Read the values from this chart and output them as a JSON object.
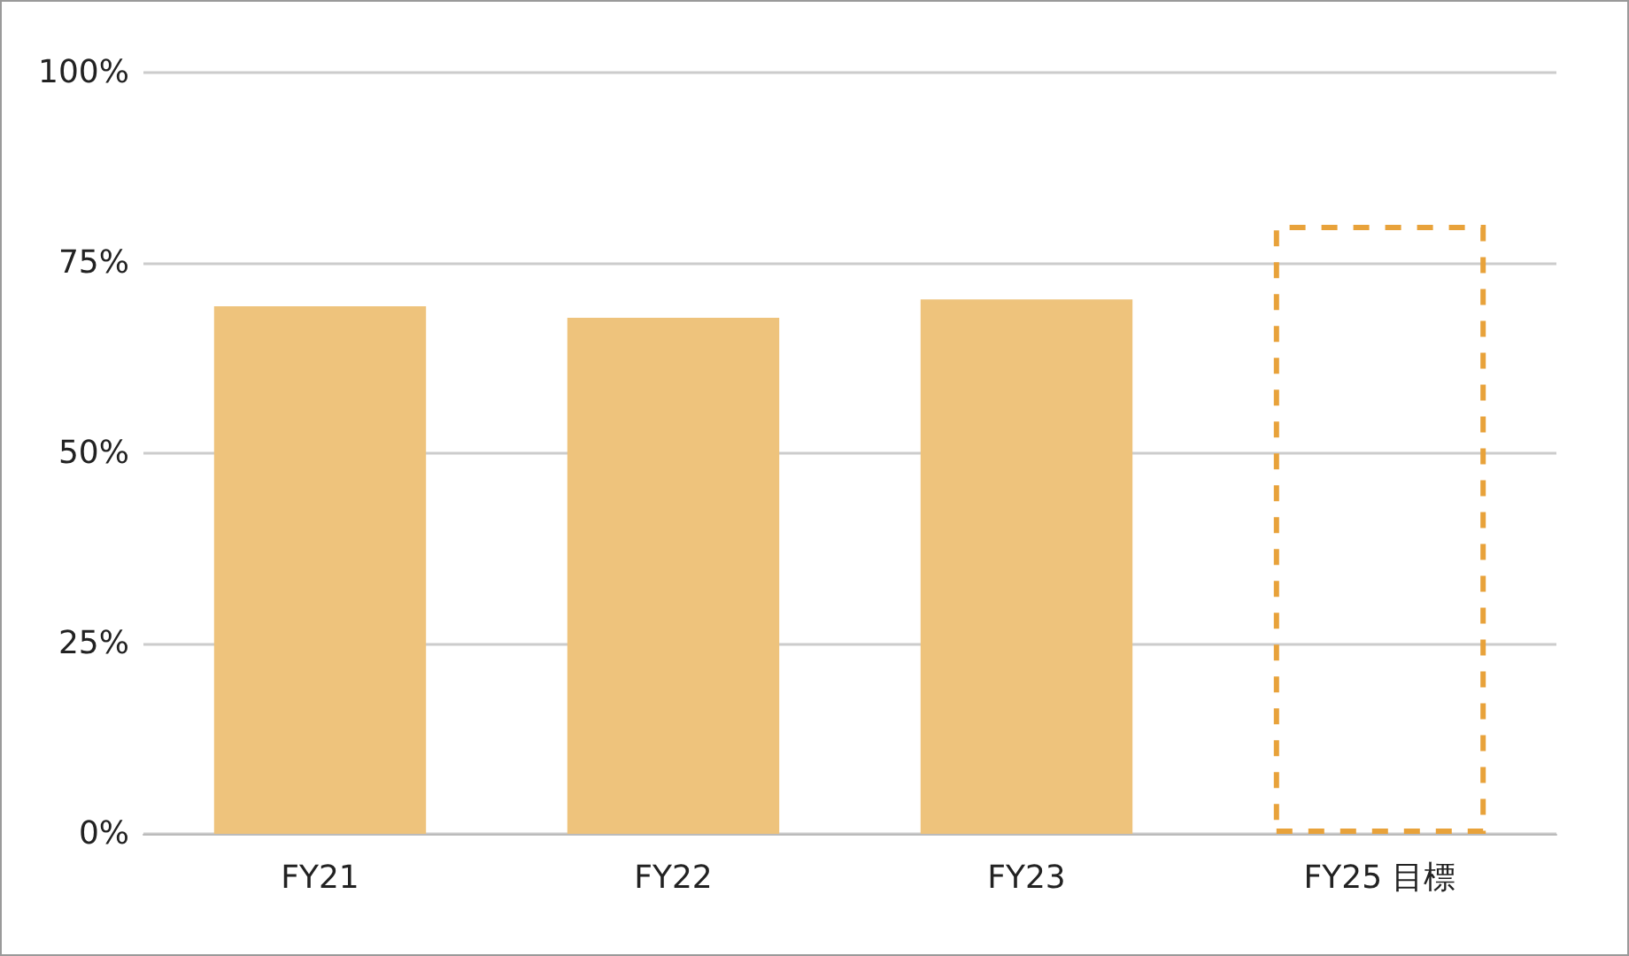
{
  "chart_data": {
    "type": "bar",
    "categories": [
      "FY21",
      "FY22",
      "FY23",
      "FY25 目標"
    ],
    "series": [
      {
        "color": "#eec37c",
        "values": [
          69.3,
          67.8,
          70.2,
          null
        ]
      },
      {
        "color": "#e8a23a",
        "values": [
          null,
          null,
          null,
          80
        ],
        "line_style": "dashed"
      }
    ],
    "ylim": [
      0,
      100
    ],
    "yticks": [
      {
        "value": 0,
        "label": "0%"
      },
      {
        "value": 25,
        "label": "25%"
      },
      {
        "value": 50,
        "label": "50%"
      },
      {
        "value": 75,
        "label": "75%"
      },
      {
        "value": 100,
        "label": "100%"
      }
    ],
    "grid": "y"
  }
}
